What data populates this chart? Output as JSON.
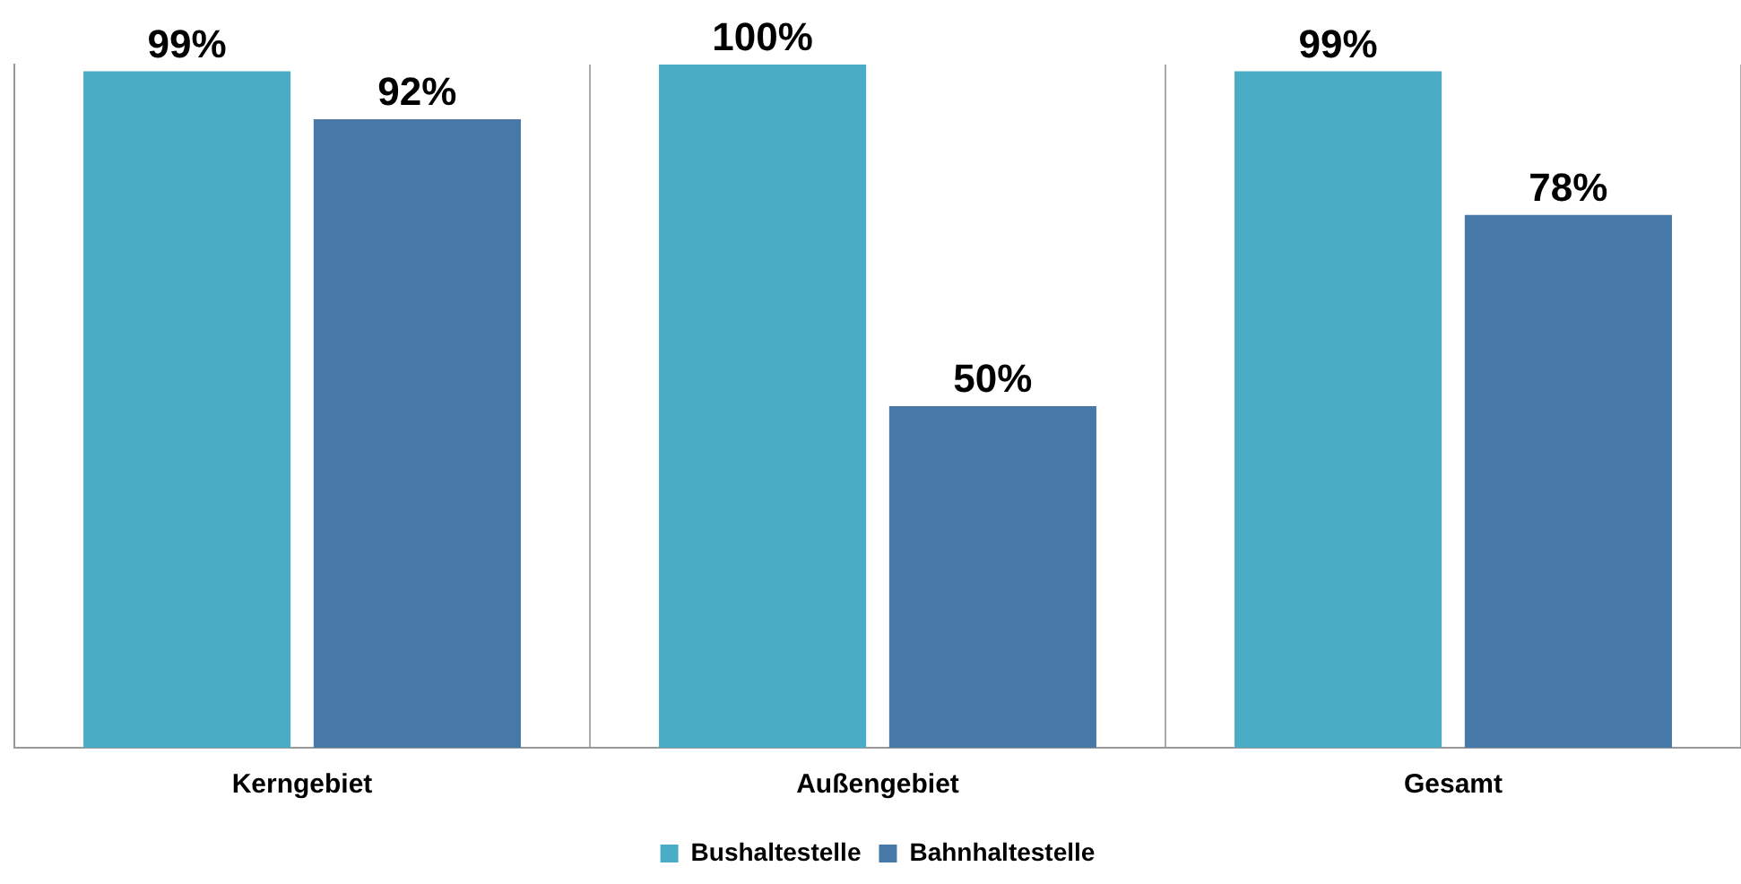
{
  "chart_data": {
    "type": "bar",
    "categories": [
      "Kerngebiet",
      "Außengebiet",
      "Gesamt"
    ],
    "series": [
      {
        "name": "Bushaltestelle",
        "color": "#4bacc6",
        "values": [
          99,
          100,
          99
        ],
        "value_labels": [
          "99%",
          "100%",
          "99%"
        ]
      },
      {
        "name": "Bahnhaltestelle",
        "color": "#4779a8",
        "values": [
          92,
          50,
          78
        ],
        "value_labels": [
          "92%",
          "50%",
          "78%"
        ]
      }
    ],
    "ylim": [
      0,
      100
    ],
    "tick_labels": "x",
    "grid": "x",
    "legend": "bottom"
  }
}
